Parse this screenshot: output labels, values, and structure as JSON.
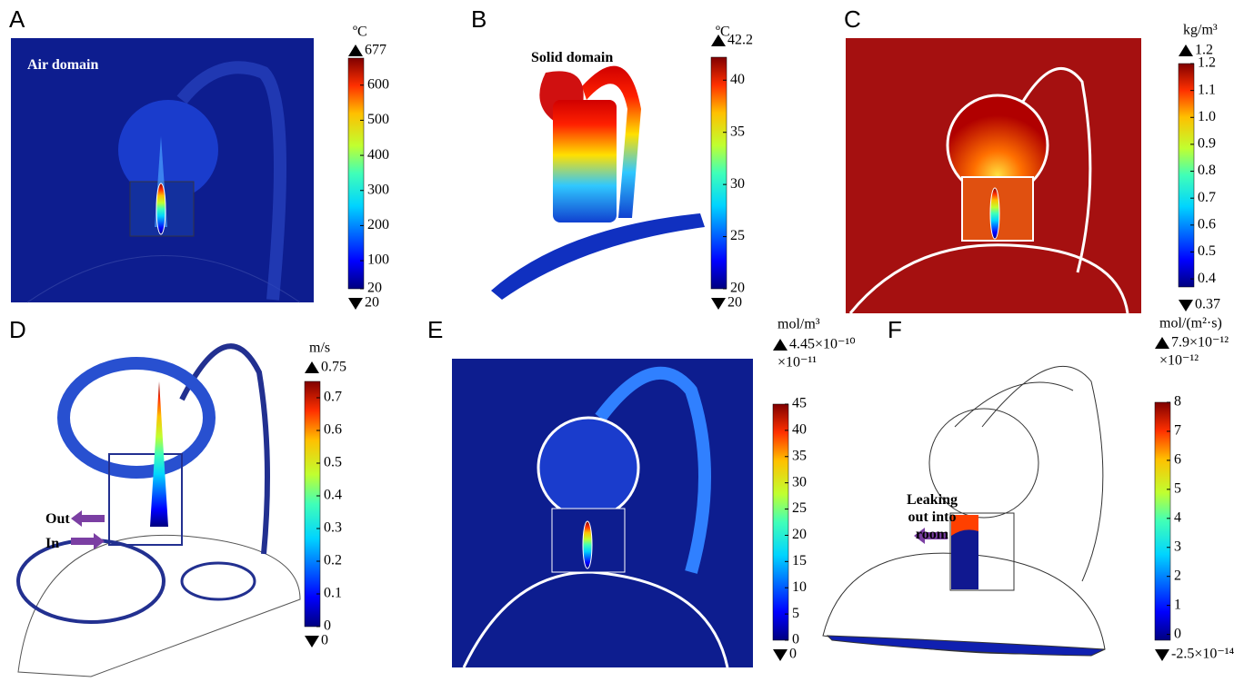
{
  "panels": [
    {
      "letter": "A",
      "unit": "ºC",
      "max": 677,
      "min": 20,
      "clim": [
        20,
        677
      ],
      "ticks": [
        20,
        100,
        200,
        300,
        400,
        500,
        600
      ],
      "annotation": "Air domain"
    },
    {
      "letter": "B",
      "unit": "ºC",
      "max": 42.2,
      "min": 20,
      "clim": [
        20,
        42.2
      ],
      "ticks": [
        20,
        25,
        30,
        35,
        40
      ],
      "annotation": "Solid domain"
    },
    {
      "letter": "C",
      "unit": "kg/m³",
      "max": 1.2,
      "min": 0.37,
      "clim": [
        0.37,
        1.2
      ],
      "ticks": [
        0.4,
        0.5,
        0.6,
        0.7,
        0.8,
        0.9,
        {
          "value": 1,
          "label": "1.0"
        },
        1.1,
        1.2
      ]
    },
    {
      "letter": "D",
      "unit": "m/s",
      "max": 0.75,
      "min": 0,
      "clim": [
        0,
        0.75
      ],
      "ticks": [
        0,
        0.1,
        0.2,
        0.3,
        0.4,
        0.5,
        0.6,
        0.7
      ],
      "arrows": [
        "Out",
        "In"
      ]
    },
    {
      "letter": "E",
      "unit": "mol/m³",
      "max": {
        "value": 4.45e-10,
        "label": "4.45×10⁻¹⁰"
      },
      "min": 0,
      "multiplier": "×10⁻¹¹",
      "clim": [
        0,
        45
      ],
      "ticks": [
        0,
        5,
        10,
        15,
        20,
        25,
        30,
        35,
        40,
        45
      ]
    },
    {
      "letter": "F",
      "unit": "mol/(m²·s)",
      "max": {
        "value": 7.9e-12,
        "label": "7.9×10⁻¹²"
      },
      "min": {
        "value": -2.5e-14,
        "label": "-2.5×10⁻¹⁴"
      },
      "multiplier": "×10⁻¹²",
      "clim": [
        -0.2,
        8
      ],
      "ticks": [
        0,
        1,
        2,
        3,
        4,
        5,
        6,
        7,
        8
      ],
      "annotation_lines": [
        "Leaking",
        "out into",
        "room"
      ]
    }
  ]
}
